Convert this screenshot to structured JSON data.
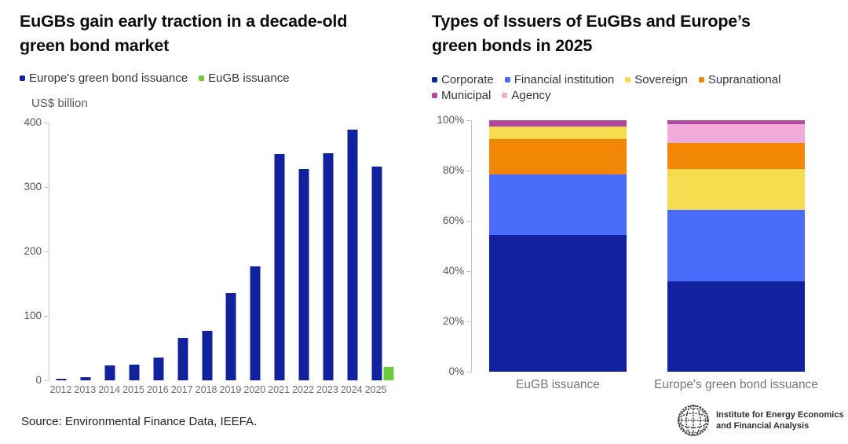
{
  "source_text": "Source: Environmental Finance Data, IEEFA.",
  "logo": {
    "organization": "IEEFA",
    "line1": "Institute for Energy Economics",
    "line2": "and Financial Analysis",
    "icon": "globe-icon"
  },
  "colors": {
    "navy": "#12219E",
    "green": "#6BCB3D",
    "royal_blue": "#4A6CFA",
    "yellow": "#F6DD4F",
    "orange": "#F28705",
    "magenta": "#B2479F",
    "pink": "#F0ABD9",
    "axis_gray": "#C4C4C4"
  },
  "chart_data": [
    {
      "type": "bar",
      "title": "EuGBs gain early traction in a decade-old green bond market",
      "ylabel": "US$ billion",
      "xlabel": "",
      "ylim": [
        0,
        400
      ],
      "yticks": [
        0,
        100,
        200,
        300,
        400
      ],
      "grid": false,
      "legend_position": "top-left",
      "categories": [
        "2012",
        "2013",
        "2014",
        "2015",
        "2016",
        "2017",
        "2018",
        "2019",
        "2020",
        "2021",
        "2022",
        "2023",
        "2024",
        "2025"
      ],
      "series": [
        {
          "name": "Europe's green bond issuance",
          "color": "#12219E",
          "values": [
            2,
            5,
            23,
            25,
            35,
            66,
            77,
            135,
            177,
            351,
            328,
            352,
            389,
            332
          ]
        },
        {
          "name": "EuGB issuance",
          "color": "#6BCB3D",
          "values": [
            null,
            null,
            null,
            null,
            null,
            null,
            null,
            null,
            null,
            null,
            null,
            null,
            null,
            21
          ]
        }
      ]
    },
    {
      "type": "bar",
      "stacked": true,
      "units": "percent",
      "title": "Types of Issuers of EuGBs and Europe’s green bonds in 2025",
      "ylim": [
        0,
        100
      ],
      "yticks": [
        0,
        20,
        40,
        60,
        80,
        100
      ],
      "ytick_suffix": "%",
      "grid": false,
      "legend_position": "top-left",
      "categories": [
        "EuGB issuance",
        "Europe's green bond issuance"
      ],
      "series": [
        {
          "name": "Corporate",
          "color": "#12219E",
          "values": [
            54.5,
            36
          ]
        },
        {
          "name": "Financial institution",
          "color": "#4A6CFA",
          "values": [
            24,
            28.5
          ]
        },
        {
          "name": "Sovereign",
          "color": "#F6DD4F",
          "values": [
            5,
            16
          ]
        },
        {
          "name": "Supranational",
          "color": "#F28705",
          "values": [
            14,
            10.5
          ]
        },
        {
          "name": "Municipal",
          "color": "#B2479F",
          "values": [
            2.5,
            1.5
          ]
        },
        {
          "name": "Agency",
          "color": "#F0ABD9",
          "values": [
            0,
            7.5
          ]
        }
      ],
      "stack_order": [
        [
          "Corporate",
          "Financial institution",
          "Supranational",
          "Sovereign",
          "Municipal"
        ],
        [
          "Corporate",
          "Financial institution",
          "Sovereign",
          "Supranational",
          "Agency",
          "Municipal"
        ]
      ]
    }
  ]
}
